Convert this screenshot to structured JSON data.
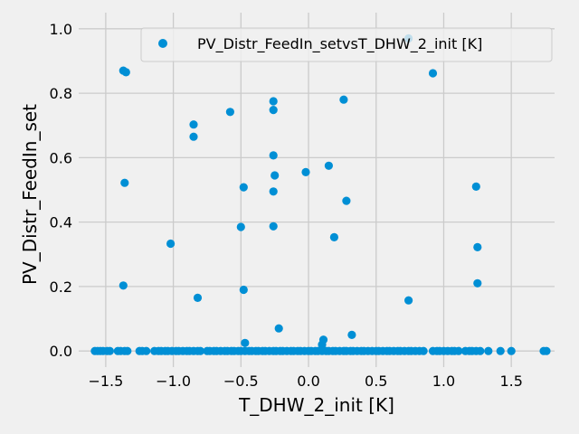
{
  "chart_data": {
    "type": "scatter",
    "xlabel": "T_DHW_2_init [K]",
    "ylabel": "PV_Distr_FeedIn_set",
    "xlim": [
      -1.7,
      1.82
    ],
    "ylim": [
      -0.05,
      1.05
    ],
    "xticks": [
      -1.5,
      -1.0,
      -0.5,
      0.0,
      0.5,
      1.0,
      1.5
    ],
    "xtick_labels": [
      "−1.5",
      "−1.0",
      "−0.5",
      "0.0",
      "0.5",
      "1.0",
      "1.5"
    ],
    "yticks": [
      0.0,
      0.2,
      0.4,
      0.6,
      0.8,
      1.0
    ],
    "ytick_labels": [
      "0.0",
      "0.2",
      "0.4",
      "0.6",
      "0.8",
      "1.0"
    ],
    "grid": true,
    "legend": {
      "position": "top-right",
      "entries": [
        "PV_Distr_FeedIn_setvsT_DHW_2_init [K]"
      ]
    },
    "series": [
      {
        "name": "PV_Distr_FeedIn_setvsT_DHW_2_init [K]",
        "color": "#008fd5",
        "points": [
          [
            -1.37,
            0.87
          ],
          [
            -1.35,
            0.865
          ],
          [
            -1.36,
            0.522
          ],
          [
            -1.37,
            0.203
          ],
          [
            -1.02,
            0.333
          ],
          [
            -0.85,
            0.703
          ],
          [
            -0.85,
            0.665
          ],
          [
            -0.82,
            0.165
          ],
          [
            -0.58,
            0.742
          ],
          [
            -0.5,
            0.385
          ],
          [
            -0.48,
            0.508
          ],
          [
            -0.48,
            0.19
          ],
          [
            -0.47,
            0.025
          ],
          [
            -0.26,
            0.775
          ],
          [
            -0.26,
            0.748
          ],
          [
            -0.26,
            0.607
          ],
          [
            -0.25,
            0.545
          ],
          [
            -0.26,
            0.495
          ],
          [
            -0.26,
            0.387
          ],
          [
            -0.22,
            0.07
          ],
          [
            -0.02,
            0.555
          ],
          [
            0.1,
            0.02
          ],
          [
            0.11,
            0.035
          ],
          [
            0.15,
            0.575
          ],
          [
            0.19,
            0.353
          ],
          [
            0.26,
            0.78
          ],
          [
            0.28,
            0.466
          ],
          [
            0.32,
            0.05
          ],
          [
            0.74,
            0.97
          ],
          [
            0.74,
            0.157
          ],
          [
            0.92,
            0.862
          ],
          [
            1.24,
            0.51
          ],
          [
            1.25,
            0.322
          ],
          [
            1.25,
            0.21
          ],
          [
            -1.58,
            0.0
          ],
          [
            -1.56,
            0.0
          ],
          [
            -1.54,
            0.0
          ],
          [
            -1.52,
            0.0
          ],
          [
            -1.49,
            0.0
          ],
          [
            -1.47,
            0.0
          ],
          [
            -1.41,
            0.0
          ],
          [
            -1.39,
            0.0
          ],
          [
            -1.36,
            0.0
          ],
          [
            -1.34,
            0.0
          ],
          [
            -1.25,
            0.0
          ],
          [
            -1.23,
            0.0
          ],
          [
            -1.2,
            0.0
          ],
          [
            -1.14,
            0.0
          ],
          [
            -1.11,
            0.0
          ],
          [
            -1.09,
            0.0
          ],
          [
            -1.06,
            0.0
          ],
          [
            -1.04,
            0.0
          ],
          [
            -1.01,
            0.0
          ],
          [
            -0.98,
            0.0
          ],
          [
            -0.96,
            0.0
          ],
          [
            -0.93,
            0.0
          ],
          [
            -0.9,
            0.0
          ],
          [
            -0.88,
            0.0
          ],
          [
            -0.85,
            0.0
          ],
          [
            -0.82,
            0.0
          ],
          [
            -0.8,
            0.0
          ],
          [
            -0.75,
            0.0
          ],
          [
            -0.73,
            0.0
          ],
          [
            -0.7,
            0.0
          ],
          [
            -0.68,
            0.0
          ],
          [
            -0.65,
            0.0
          ],
          [
            -0.62,
            0.0
          ],
          [
            -0.6,
            0.0
          ],
          [
            -0.57,
            0.0
          ],
          [
            -0.55,
            0.0
          ],
          [
            -0.52,
            0.0
          ],
          [
            -0.5,
            0.0
          ],
          [
            -0.47,
            0.0
          ],
          [
            -0.44,
            0.0
          ],
          [
            -0.42,
            0.0
          ],
          [
            -0.39,
            0.0
          ],
          [
            -0.37,
            0.0
          ],
          [
            -0.34,
            0.0
          ],
          [
            -0.32,
            0.0
          ],
          [
            -0.29,
            0.0
          ],
          [
            -0.26,
            0.0
          ],
          [
            -0.24,
            0.0
          ],
          [
            -0.21,
            0.0
          ],
          [
            -0.19,
            0.0
          ],
          [
            -0.16,
            0.0
          ],
          [
            -0.13,
            0.0
          ],
          [
            -0.11,
            0.0
          ],
          [
            -0.08,
            0.0
          ],
          [
            -0.06,
            0.0
          ],
          [
            -0.03,
            0.0
          ],
          [
            0.0,
            0.0
          ],
          [
            0.02,
            0.0
          ],
          [
            0.05,
            0.0
          ],
          [
            0.07,
            0.0
          ],
          [
            0.1,
            0.0
          ],
          [
            0.13,
            0.0
          ],
          [
            0.15,
            0.0
          ],
          [
            0.18,
            0.0
          ],
          [
            0.2,
            0.0
          ],
          [
            0.23,
            0.0
          ],
          [
            0.26,
            0.0
          ],
          [
            0.28,
            0.0
          ],
          [
            0.31,
            0.0
          ],
          [
            0.33,
            0.0
          ],
          [
            0.36,
            0.0
          ],
          [
            0.39,
            0.0
          ],
          [
            0.41,
            0.0
          ],
          [
            0.44,
            0.0
          ],
          [
            0.47,
            0.0
          ],
          [
            0.5,
            0.0
          ],
          [
            0.52,
            0.0
          ],
          [
            0.55,
            0.0
          ],
          [
            0.58,
            0.0
          ],
          [
            0.6,
            0.0
          ],
          [
            0.63,
            0.0
          ],
          [
            0.66,
            0.0
          ],
          [
            0.68,
            0.0
          ],
          [
            0.71,
            0.0
          ],
          [
            0.74,
            0.0
          ],
          [
            0.76,
            0.0
          ],
          [
            0.79,
            0.0
          ],
          [
            0.82,
            0.0
          ],
          [
            0.85,
            0.0
          ],
          [
            0.92,
            0.0
          ],
          [
            0.95,
            0.0
          ],
          [
            0.97,
            0.0
          ],
          [
            1.0,
            0.0
          ],
          [
            1.03,
            0.0
          ],
          [
            1.06,
            0.0
          ],
          [
            1.08,
            0.0
          ],
          [
            1.11,
            0.0
          ],
          [
            1.16,
            0.0
          ],
          [
            1.19,
            0.0
          ],
          [
            1.21,
            0.0
          ],
          [
            1.24,
            0.0
          ],
          [
            1.27,
            0.0
          ],
          [
            1.33,
            0.0
          ],
          [
            1.42,
            0.0
          ],
          [
            1.5,
            0.0
          ],
          [
            1.74,
            0.0
          ],
          [
            1.76,
            0.0
          ]
        ]
      }
    ]
  }
}
